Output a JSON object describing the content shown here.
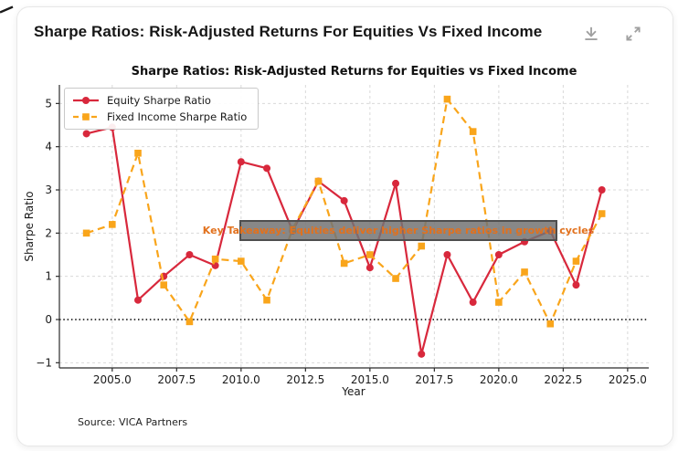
{
  "header": {
    "title": "Sharpe Ratios: Risk-Adjusted Returns For Equities Vs Fixed Income"
  },
  "source": {
    "text": "Source: VICA Partners"
  },
  "chart_data": {
    "type": "line",
    "title": "Sharpe Ratios: Risk-Adjusted Returns for Equities vs Fixed Income",
    "xlabel": "Year",
    "ylabel": "Sharpe Ratio",
    "x": [
      2004,
      2005,
      2006,
      2007,
      2008,
      2009,
      2010,
      2011,
      2012,
      2013,
      2014,
      2015,
      2016,
      2017,
      2018,
      2019,
      2020,
      2021,
      2022,
      2023,
      2024
    ],
    "series": [
      {
        "name": "Equity Sharpe Ratio",
        "color": "#d8283c",
        "marker": "circle",
        "style": "solid",
        "values": [
          4.3,
          4.45,
          0.45,
          1.0,
          1.5,
          1.25,
          3.65,
          3.5,
          2.05,
          3.2,
          2.75,
          1.2,
          3.15,
          -0.8,
          1.5,
          0.4,
          1.5,
          1.8,
          2.05,
          0.8,
          3.0
        ]
      },
      {
        "name": "Fixed Income Sharpe Ratio",
        "color": "#f9a51b",
        "marker": "square",
        "style": "dashed",
        "values": [
          2.0,
          2.2,
          3.85,
          0.8,
          -0.05,
          1.4,
          1.35,
          0.45,
          2.1,
          3.2,
          1.3,
          1.5,
          0.95,
          1.7,
          5.1,
          4.35,
          0.4,
          1.1,
          -0.1,
          1.35,
          2.45
        ]
      }
    ],
    "xticks": [
      2005,
      2007.5,
      2010,
      2012.5,
      2015,
      2017.5,
      2020,
      2022.5,
      2025
    ],
    "xtick_labels": [
      "2005.0",
      "2007.5",
      "2010.0",
      "2012.5",
      "2015.0",
      "2017.5",
      "2020.0",
      "2022.5",
      "2025.0"
    ],
    "yticks": [
      -1,
      0,
      1,
      2,
      3,
      4,
      5
    ],
    "ytick_labels": [
      "−1",
      "0",
      "1",
      "2",
      "3",
      "4",
      "5"
    ],
    "xlim": [
      2002.95,
      2025.82
    ],
    "ylim": [
      -1.12,
      5.43
    ],
    "grid": true,
    "zero_line": true,
    "legend_position": "upper left",
    "annotation": {
      "text": "Key Takeaway: Equities deliver higher Sharpe ratios in growth cycles",
      "bg_color": "rgba(115,115,115,0.85)",
      "border_color": "#4e4e4e",
      "text_color": "#e2711d"
    }
  }
}
